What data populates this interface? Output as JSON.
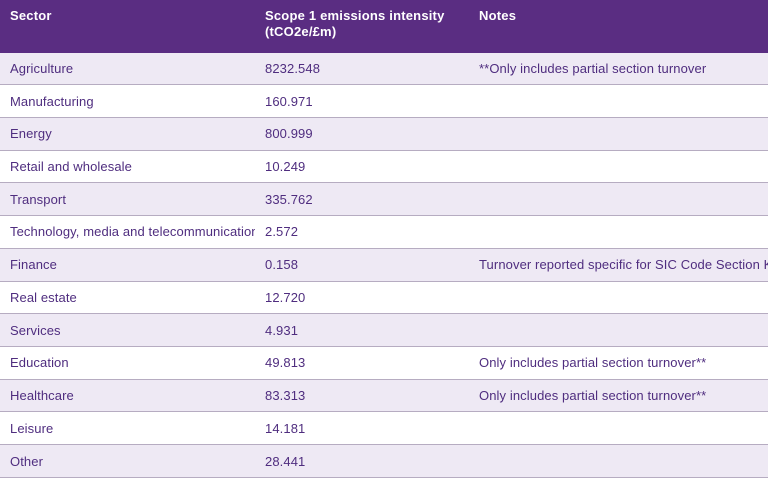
{
  "table": {
    "headers": {
      "sector": "Sector",
      "intensity": "Scope 1 emissions intensity\n(tCO2e/£m)",
      "notes": "Notes"
    },
    "rows": [
      {
        "sector": "Agriculture",
        "intensity": "8232.548",
        "notes": "**Only includes partial section turnover"
      },
      {
        "sector": "Manufacturing",
        "intensity": "160.971",
        "notes": ""
      },
      {
        "sector": "Energy",
        "intensity": "800.999",
        "notes": ""
      },
      {
        "sector": "Retail and wholesale",
        "intensity": "10.249",
        "notes": ""
      },
      {
        "sector": "Transport",
        "intensity": "335.762",
        "notes": ""
      },
      {
        "sector": "Technology, media and telecommunications",
        "intensity": "2.572",
        "notes": ""
      },
      {
        "sector": "Finance",
        "intensity": "0.158",
        "notes": "Turnover reported specific for SIC Code Section K*"
      },
      {
        "sector": "Real estate",
        "intensity": "12.720",
        "notes": ""
      },
      {
        "sector": "Services",
        "intensity": "4.931",
        "notes": ""
      },
      {
        "sector": "Education",
        "intensity": "49.813",
        "notes": "Only includes partial section turnover**"
      },
      {
        "sector": "Healthcare",
        "intensity": "83.313",
        "notes": "Only includes partial section turnover**"
      },
      {
        "sector": "Leisure",
        "intensity": "14.181",
        "notes": ""
      },
      {
        "sector": "Other",
        "intensity": "28.441",
        "notes": ""
      }
    ]
  },
  "colors": {
    "header_bg": "#5a2d82",
    "header_text": "#ffffff",
    "row_alt_bg": "#eee9f4",
    "row_bg": "#ffffff",
    "border": "#b6acc1",
    "body_text": "#4f2d7f"
  },
  "chart_data": {
    "type": "table",
    "columns": [
      "Sector",
      "Scope 1 emissions intensity (tCO2e/£m)",
      "Notes"
    ],
    "rows": [
      [
        "Agriculture",
        8232.548,
        "**Only includes partial section turnover"
      ],
      [
        "Manufacturing",
        160.971,
        ""
      ],
      [
        "Energy",
        800.999,
        ""
      ],
      [
        "Retail and wholesale",
        10.249,
        ""
      ],
      [
        "Transport",
        335.762,
        ""
      ],
      [
        "Technology, media and telecommunications",
        2.572,
        ""
      ],
      [
        "Finance",
        0.158,
        "Turnover reported specific for SIC Code Section K*"
      ],
      [
        "Real estate",
        12.72,
        ""
      ],
      [
        "Services",
        4.931,
        ""
      ],
      [
        "Education",
        49.813,
        "Only includes partial section turnover**"
      ],
      [
        "Healthcare",
        83.313,
        "Only includes partial section turnover**"
      ],
      [
        "Leisure",
        14.181,
        ""
      ],
      [
        "Other",
        28.441,
        ""
      ]
    ]
  }
}
